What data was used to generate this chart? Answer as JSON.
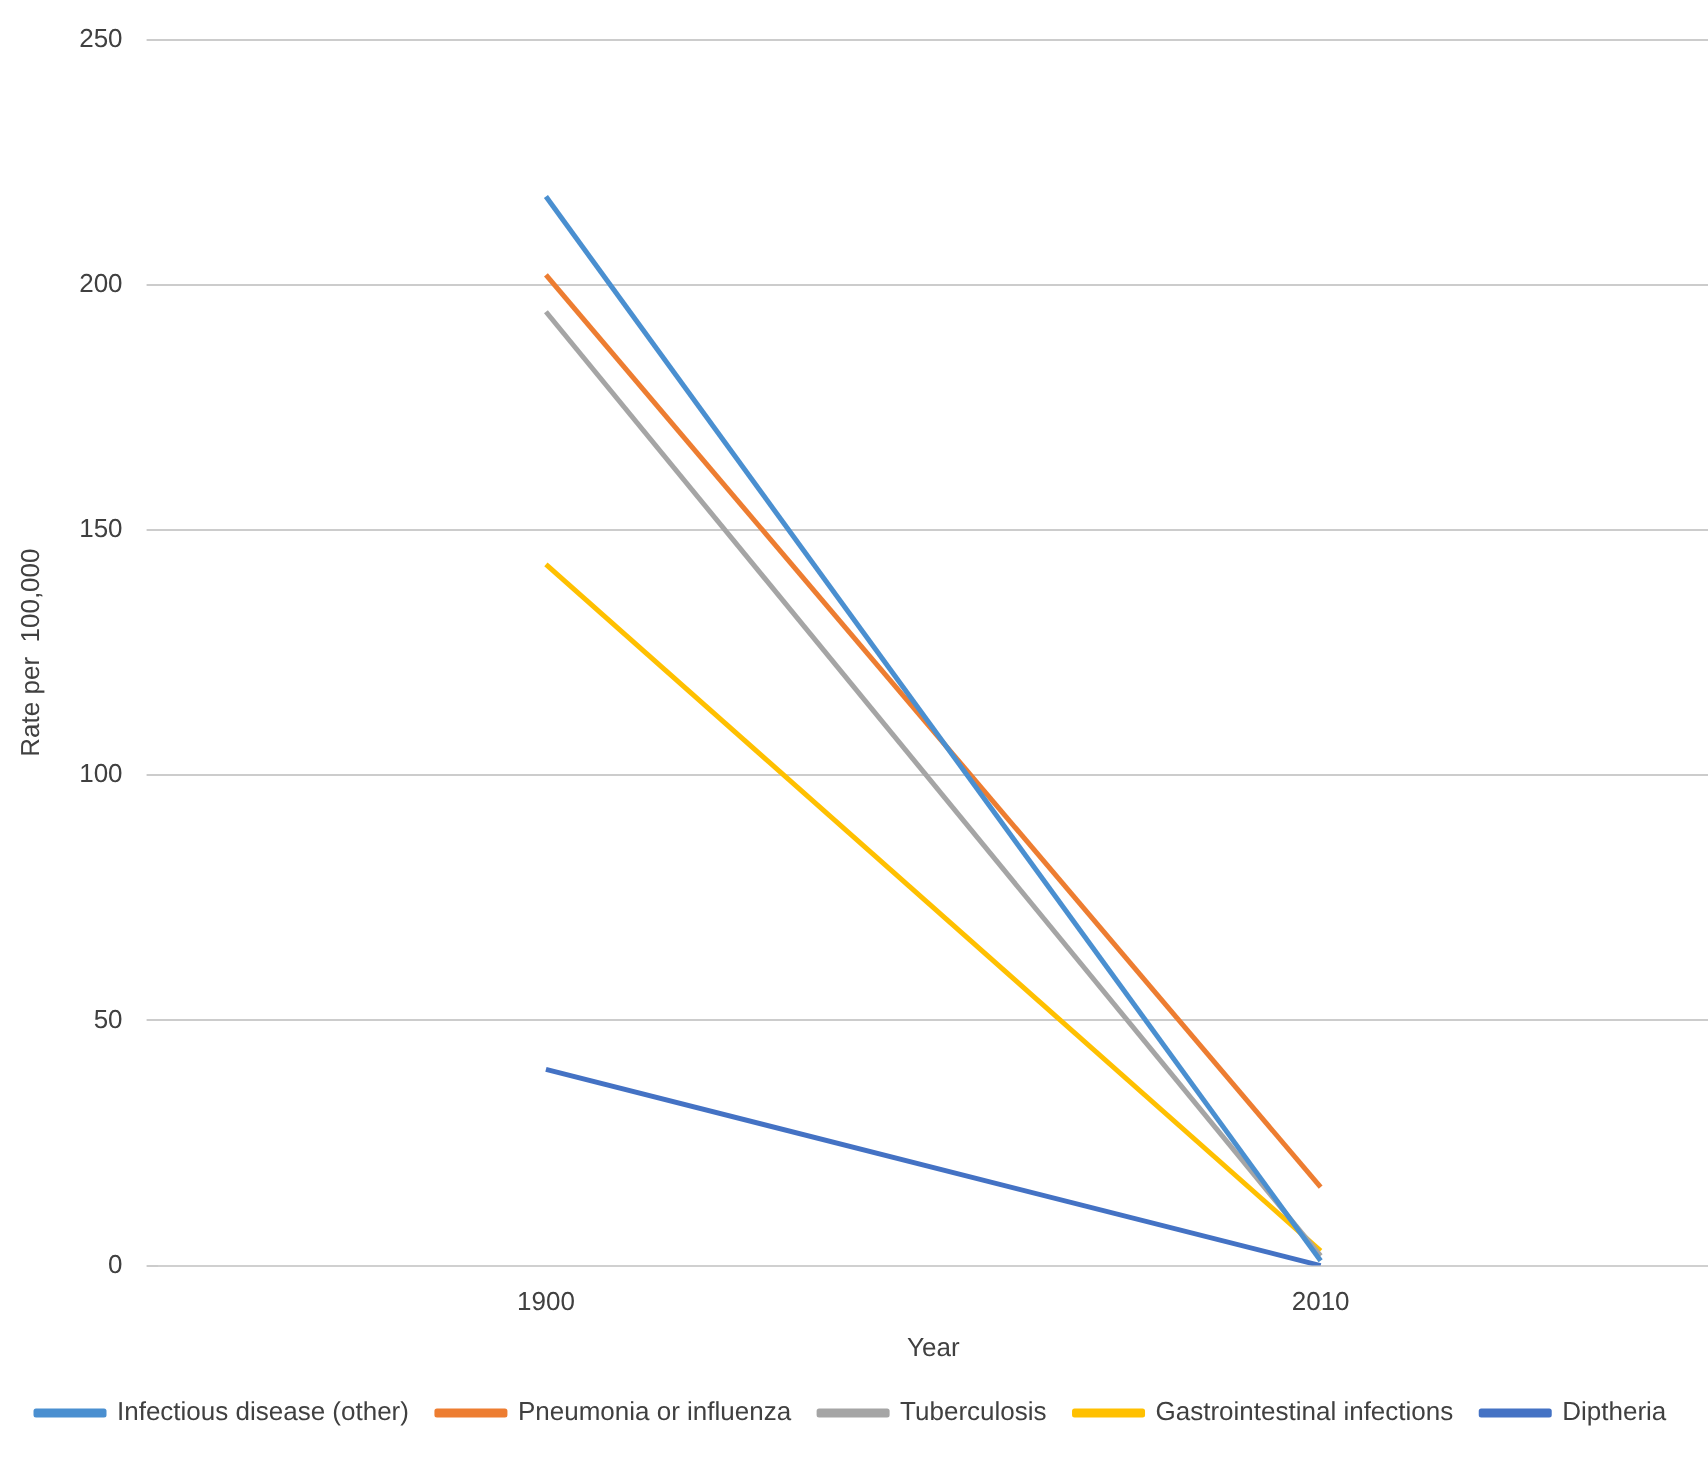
{
  "chart_data": {
    "type": "line",
    "xlabel": "Year",
    "ylabel": "Rate per  100,000",
    "categories": [
      "1900",
      "2010"
    ],
    "series": [
      {
        "name": "Infectious disease (other)",
        "color": "#4a8fd0",
        "values": [
          218,
          1
        ]
      },
      {
        "name": "Pneumonia or influenza",
        "color": "#ed7d31",
        "values": [
          202,
          16
        ]
      },
      {
        "name": "Tuberculosis",
        "color": "#a5a5a5",
        "values": [
          194.5,
          2
        ]
      },
      {
        "name": "Gastrointestinal infections",
        "color": "#ffc000",
        "values": [
          143,
          3
        ]
      },
      {
        "name": "Diptheria",
        "color": "#4472c4",
        "values": [
          40,
          0
        ]
      }
    ],
    "ylim": [
      0,
      250
    ],
    "yticks": [
      0,
      50,
      100,
      150,
      200,
      250
    ],
    "grid": "y",
    "legend": "bottom",
    "marker": "none",
    "line_style": "solid"
  }
}
